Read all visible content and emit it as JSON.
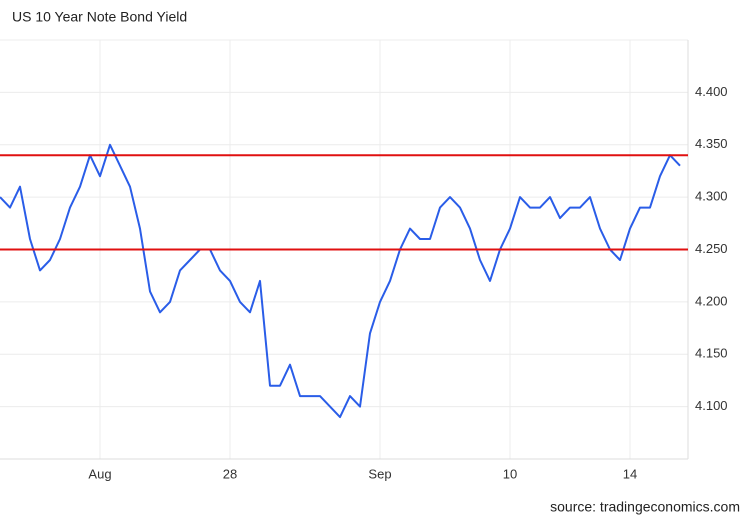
{
  "chart_data": {
    "type": "line",
    "title": "US 10 Year Note Bond Yield",
    "source": "source: tradingeconomics.com",
    "categories": [
      null,
      null,
      null,
      null,
      null,
      null,
      null,
      null,
      null,
      null,
      "Aug",
      null,
      null,
      null,
      null,
      null,
      null,
      null,
      null,
      null,
      null,
      null,
      null,
      "28",
      null,
      null,
      null,
      null,
      null,
      null,
      null,
      null,
      null,
      null,
      null,
      null,
      null,
      null,
      "Sep",
      null,
      null,
      null,
      null,
      null,
      null,
      null,
      null,
      null,
      null,
      null,
      null,
      "10",
      null,
      null,
      null,
      null,
      null,
      null,
      null,
      null,
      null,
      null,
      null,
      "14",
      null,
      null,
      null,
      null,
      null
    ],
    "series": [
      {
        "color": "#2a5de8",
        "values": [
          4.3,
          4.29,
          4.31,
          4.26,
          4.23,
          4.24,
          4.26,
          4.29,
          4.31,
          4.34,
          4.32,
          4.35,
          4.33,
          4.31,
          4.27,
          4.21,
          4.19,
          4.2,
          4.23,
          4.24,
          4.25,
          4.25,
          4.23,
          4.22,
          4.2,
          4.19,
          4.22,
          4.12,
          4.12,
          4.14,
          4.11,
          4.11,
          4.11,
          4.1,
          4.09,
          4.11,
          4.1,
          4.17,
          4.2,
          4.22,
          4.25,
          4.27,
          4.26,
          4.26,
          4.29,
          4.3,
          4.29,
          4.27,
          4.24,
          4.22,
          4.25,
          4.27,
          4.3,
          4.29,
          4.29,
          4.3,
          4.28,
          4.29,
          4.29,
          4.3,
          4.27,
          4.25,
          4.24,
          4.27,
          4.29,
          4.29,
          4.32,
          4.34,
          4.33
        ]
      }
    ],
    "hlines": [
      {
        "value": 4.34,
        "color": "#e01010"
      },
      {
        "value": 4.25,
        "color": "#e01010"
      }
    ],
    "ylim": [
      4.05,
      4.45
    ],
    "yticks": [
      {
        "value": 4.1,
        "label": "4.100"
      },
      {
        "value": 4.15,
        "label": "4.150"
      },
      {
        "value": 4.2,
        "label": "4.200"
      },
      {
        "value": 4.25,
        "label": "4.250"
      },
      {
        "value": 4.3,
        "label": "4.300"
      },
      {
        "value": 4.35,
        "label": "4.350"
      },
      {
        "value": 4.4,
        "label": "4.400"
      }
    ],
    "grid": true
  }
}
